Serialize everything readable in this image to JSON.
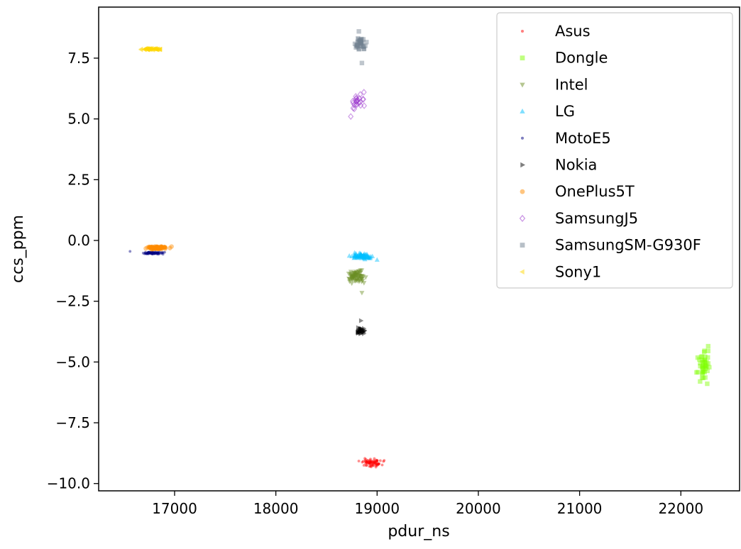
{
  "chart_data": {
    "type": "scatter",
    "title": "",
    "xlabel": "pdur_ns",
    "ylabel": "ccs_ppm",
    "xlim": [
      16250,
      22580
    ],
    "ylim": [
      -10.3,
      9.6
    ],
    "xticks": [
      17000,
      18000,
      19000,
      20000,
      21000,
      22000
    ],
    "xtick_labels": [
      "17000",
      "18000",
      "19000",
      "20000",
      "21000",
      "22000"
    ],
    "yticks": [
      7.5,
      5.0,
      2.5,
      0.0,
      -2.5,
      -5.0,
      -7.5,
      -10.0
    ],
    "ytick_labels": [
      "7.5",
      "5.0",
      "2.5",
      "0.0",
      "−2.5",
      "−5.0",
      "−7.5",
      "−10.0"
    ],
    "grid": false,
    "legend_position": "top-right",
    "series": [
      {
        "name": "Asus",
        "color": "#ff0000",
        "marker": "point",
        "cluster": {
          "x_center": 18950,
          "x_spread": 110,
          "y_center": -9.15,
          "y_spread": 0.18,
          "count": 70
        },
        "points": [
          {
            "x": 19070,
            "y": -9.05
          },
          {
            "x": 18870,
            "y": -9.25
          }
        ]
      },
      {
        "name": "Dongle",
        "color": "#7fff00",
        "marker": "square",
        "cluster": {
          "x_center": 22225,
          "x_spread": 60,
          "y_center": -5.1,
          "y_spread": 0.7,
          "count": 40
        },
        "points": [
          {
            "x": 22270,
            "y": -4.35
          },
          {
            "x": 22190,
            "y": -5.8
          }
        ]
      },
      {
        "name": "Intel",
        "color": "#6b8e23",
        "marker": "triangle-down",
        "cluster": {
          "x_center": 18800,
          "x_spread": 100,
          "y_center": -1.5,
          "y_spread": 0.25,
          "count": 70
        },
        "points": [
          {
            "x": 18850,
            "y": -2.15
          }
        ]
      },
      {
        "name": "LG",
        "color": "#00bfff",
        "marker": "triangle-up",
        "cluster": {
          "x_center": 18850,
          "x_spread": 110,
          "y_center": -0.65,
          "y_spread": 0.12,
          "count": 70
        },
        "points": [
          {
            "x": 19000,
            "y": -0.8
          }
        ]
      },
      {
        "name": "MotoE5",
        "color": "#000080",
        "marker": "point",
        "cluster": {
          "x_center": 16780,
          "x_spread": 110,
          "y_center": -0.52,
          "y_spread": 0.05,
          "count": 70
        },
        "points": [
          {
            "x": 16560,
            "y": -0.45
          }
        ]
      },
      {
        "name": "Nokia",
        "color": "#000000",
        "marker": "triangle-right",
        "cluster": {
          "x_center": 18830,
          "x_spread": 55,
          "y_center": -3.75,
          "y_spread": 0.18,
          "count": 30
        },
        "points": [
          {
            "x": 18840,
            "y": -3.3
          }
        ]
      },
      {
        "name": "OnePlus5T",
        "color": "#ff8c00",
        "marker": "circle",
        "cluster": {
          "x_center": 16830,
          "x_spread": 110,
          "y_center": -0.3,
          "y_spread": 0.06,
          "count": 80
        },
        "points": [
          {
            "x": 16970,
            "y": -0.25
          }
        ]
      },
      {
        "name": "SamsungJ5",
        "color": "#9932cc",
        "marker": "diamond",
        "cluster": {
          "x_center": 18800,
          "x_spread": 70,
          "y_center": 5.7,
          "y_spread": 0.35,
          "count": 22
        },
        "points": [
          {
            "x": 18870,
            "y": 6.1
          },
          {
            "x": 18740,
            "y": 5.1
          }
        ]
      },
      {
        "name": "SamsungSM-G930F",
        "color": "#708090",
        "marker": "square",
        "cluster": {
          "x_center": 18840,
          "x_spread": 55,
          "y_center": 8.1,
          "y_spread": 0.3,
          "count": 35
        },
        "points": [
          {
            "x": 18850,
            "y": 7.3
          },
          {
            "x": 18820,
            "y": 8.6
          }
        ]
      },
      {
        "name": "Sony1",
        "color": "#ffd700",
        "marker": "triangle-left",
        "cluster": {
          "x_center": 16770,
          "x_spread": 90,
          "y_center": 7.87,
          "y_spread": 0.04,
          "count": 50
        },
        "points": []
      }
    ]
  }
}
